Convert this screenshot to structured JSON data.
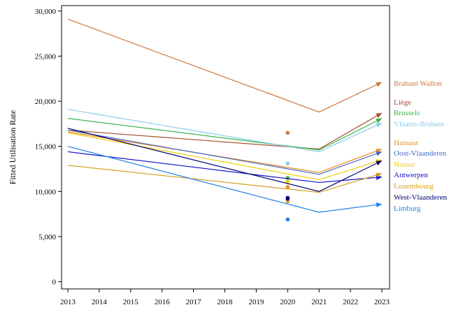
{
  "chart_data": {
    "type": "line",
    "title": "",
    "xlabel": "",
    "ylabel": "Fitted Utilisation Rate",
    "x": [
      2013,
      2014,
      2015,
      2016,
      2017,
      2018,
      2019,
      2020,
      2021,
      2022,
      2023
    ],
    "xlim": [
      2013,
      2023
    ],
    "ylim": [
      -800,
      30600
    ],
    "y_ticks": [
      0,
      5000,
      10000,
      15000,
      20000,
      25000,
      30000
    ],
    "y_tick_labels": [
      "0",
      "5,000",
      "10,000",
      "15,000",
      "20,000",
      "25,000",
      "30,000"
    ],
    "x_tick_labels": [
      "2013",
      "2014",
      "2015",
      "2016",
      "2017",
      "2018",
      "2019",
      "2020",
      "2021",
      "2022",
      "2023"
    ],
    "grid": false,
    "legend_placement": "right",
    "series": [
      {
        "name": "Brabant Wallon",
        "color": "#d2743a",
        "x": [
          2013,
          2021,
          2023
        ],
        "values": [
          29100,
          18800,
          22100
        ],
        "point_2020": 16500
      },
      {
        "name": "Liège",
        "color": "#a0522d",
        "x": [
          2013,
          2021,
          2023
        ],
        "values": [
          16800,
          14700,
          18700
        ],
        "point_2020": null
      },
      {
        "name": "Brussels",
        "color": "#3cb44b",
        "x": [
          2013,
          2021,
          2023
        ],
        "values": [
          18100,
          14600,
          18100
        ],
        "point_2020": 11500
      },
      {
        "name": "Vlaams-Brabant",
        "color": "#87ceeb",
        "x": [
          2013,
          2021,
          2023
        ],
        "values": [
          19100,
          14400,
          17600
        ],
        "point_2020": 13100
      },
      {
        "name": "Hainaut",
        "color": "#f08c1e",
        "x": [
          2013,
          2021,
          2023
        ],
        "values": [
          16600,
          12100,
          14700
        ],
        "point_2020": 10500
      },
      {
        "name": "Oost-Vlaanderen",
        "color": "#4169c8",
        "x": [
          2013,
          2021,
          2023
        ],
        "values": [
          16800,
          11900,
          14400
        ],
        "point_2020": null
      },
      {
        "name": "Namur",
        "color": "#f0d000",
        "x": [
          2013,
          2021,
          2023
        ],
        "values": [
          16500,
          11300,
          13500
        ],
        "point_2020": 11100
      },
      {
        "name": "Antwerpen",
        "color": "#1010cc",
        "x": [
          2013,
          2021,
          2023
        ],
        "values": [
          14400,
          11000,
          11600
        ],
        "point_2020": 9300
      },
      {
        "name": "Luxembourg",
        "color": "#d4a020",
        "x": [
          2013,
          2021,
          2023
        ],
        "values": [
          12900,
          9900,
          12000
        ],
        "point_2020": 8900
      },
      {
        "name": "West-Vlaanderen",
        "color": "#00006e",
        "x": [
          2013,
          2021,
          2023
        ],
        "values": [
          17000,
          10000,
          13400
        ],
        "point_2020": 9200
      },
      {
        "name": "Limburg",
        "color": "#2080e8",
        "x": [
          2013,
          2021,
          2023
        ],
        "values": [
          15000,
          7700,
          8600
        ],
        "point_2020": 6900
      }
    ]
  }
}
